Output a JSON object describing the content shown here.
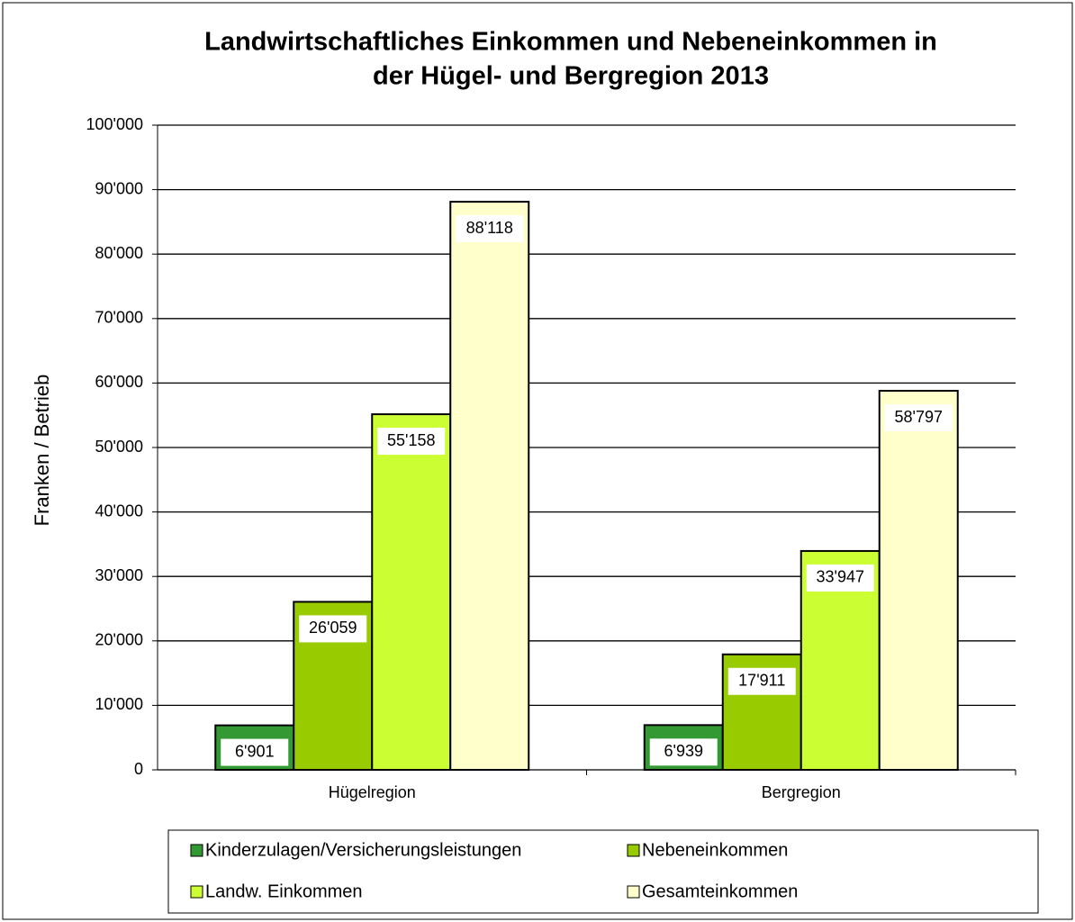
{
  "chart_data": {
    "type": "bar",
    "title": [
      "Landwirtschaftliches Einkommen und Nebeneinkommen in",
      "der Hügel- und Bergregion 2013"
    ],
    "y_label": "Franken / Betrieb",
    "categories": [
      "Hügelregion",
      "Bergregion"
    ],
    "series": [
      {
        "name": "Kinderzulagen/Versicherungsleistungen",
        "color": "#339933",
        "values": [
          6901,
          6939
        ],
        "value_labels": [
          "6'901",
          "6'939"
        ]
      },
      {
        "name": "Nebeneinkommen",
        "color": "#99cc00",
        "values": [
          26059,
          17911
        ],
        "value_labels": [
          "26'059",
          "17'911"
        ]
      },
      {
        "name": "Landw. Einkommen",
        "color": "#ccff33",
        "values": [
          55158,
          33947
        ],
        "value_labels": [
          "55'158",
          "33'947"
        ]
      },
      {
        "name": "Gesamteinkommen",
        "color": "#ffffcc",
        "values": [
          88118,
          58797
        ],
        "value_labels": [
          "88'118",
          "58'797"
        ]
      }
    ],
    "ylim": [
      0,
      100000
    ],
    "yticks": [
      0,
      {
        "value": 10000,
        "label": "10'000"
      },
      {
        "value": 20000,
        "label": "20'000"
      },
      {
        "value": 30000,
        "label": "30'000"
      },
      {
        "value": 40000,
        "label": "40'000"
      },
      {
        "value": 50000,
        "label": "50'000"
      },
      {
        "value": 60000,
        "label": "60'000"
      },
      {
        "value": 70000,
        "label": "70'000"
      },
      {
        "value": 80000,
        "label": "80'000"
      },
      {
        "value": 90000,
        "label": "90'000"
      },
      {
        "value": 100000,
        "label": "100'000"
      }
    ],
    "grid": true,
    "legend": "bottom"
  }
}
